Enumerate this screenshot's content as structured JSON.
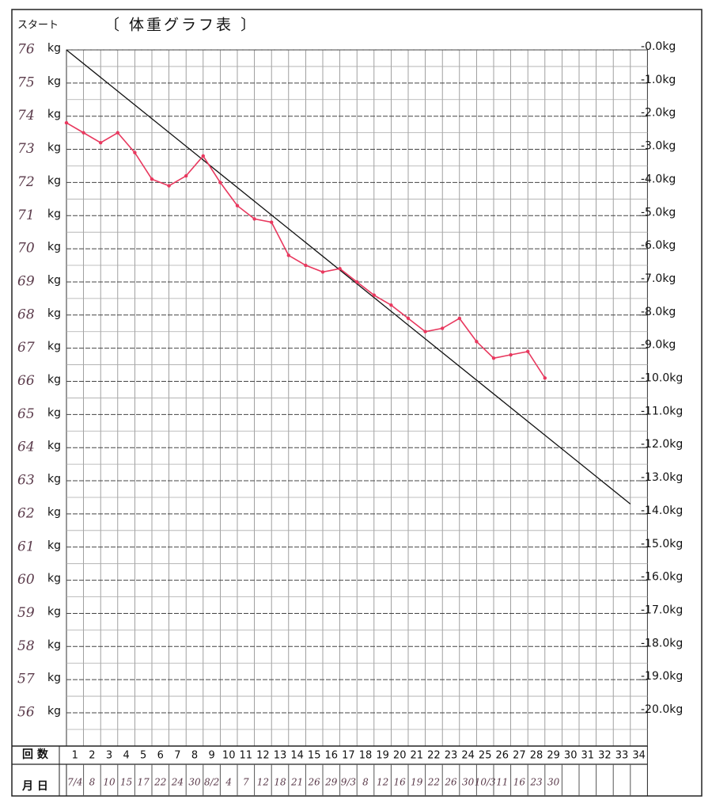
{
  "chart_data": {
    "type": "line",
    "corner_label": "スタート",
    "title": "〔 体重グラフ表 〕",
    "count_row_label": "回 数",
    "date_row_label": "月 日",
    "categories": [
      1,
      2,
      3,
      4,
      5,
      6,
      7,
      8,
      9,
      10,
      11,
      12,
      13,
      14,
      15,
      16,
      17,
      18,
      19,
      20,
      21,
      22,
      23,
      24,
      25,
      26,
      27,
      28,
      29,
      30,
      31,
      32,
      33,
      34
    ],
    "dates": [
      "7/4",
      "8",
      "10",
      "15",
      "17",
      "22",
      "24",
      "30",
      "8/2",
      "4",
      "7",
      "12",
      "18",
      "21",
      "26",
      "29",
      "9/3",
      "8",
      "12",
      "16",
      "19",
      "22",
      "26",
      "30",
      "10/3",
      "11",
      "16",
      "23",
      "30",
      null,
      null,
      null,
      null,
      null
    ],
    "series": [
      {
        "color": "#e8385e",
        "values": [
          73.8,
          73.5,
          73.2,
          73.5,
          72.9,
          72.1,
          71.9,
          72.2,
          72.8,
          72.0,
          71.3,
          70.9,
          70.8,
          69.8,
          69.5,
          69.3,
          69.4,
          69.0,
          68.6,
          68.3,
          67.9,
          67.5,
          67.6,
          67.9,
          67.2,
          66.7,
          66.8,
          66.9,
          66.1,
          null,
          null,
          null,
          null,
          null
        ]
      }
    ],
    "target_line": {
      "color": "#111111",
      "x": [
        1,
        34
      ],
      "values": [
        76,
        62.3
      ]
    },
    "ylim": [
      76,
      56
    ],
    "yticks": [
      76,
      75,
      74,
      73,
      72,
      71,
      70,
      69,
      68,
      67,
      66,
      65,
      64,
      63,
      62,
      61,
      60,
      59,
      58,
      57,
      56
    ],
    "y_unit": "kg",
    "y2lim": [
      0,
      -20
    ],
    "y2ticks": [
      {
        "value": 0,
        "label": "-0.0kg"
      },
      {
        "value": -1,
        "label": "-1.0kg"
      },
      {
        "value": -2,
        "label": "-2.0kg"
      },
      {
        "value": -3,
        "label": "-3.0kg"
      },
      {
        "value": -4,
        "label": "-4.0kg"
      },
      {
        "value": -5,
        "label": "-5.0kg"
      },
      {
        "value": -6,
        "label": "-6.0kg"
      },
      {
        "value": -7,
        "label": "-7.0kg"
      },
      {
        "value": -8,
        "label": "-8.0kg"
      },
      {
        "value": -9,
        "label": "-9.0kg"
      },
      {
        "value": -10,
        "label": "-10.0kg"
      },
      {
        "value": -11,
        "label": "-11.0kg"
      },
      {
        "value": -12,
        "label": "-12.0kg"
      },
      {
        "value": -13,
        "label": "-13.0kg"
      },
      {
        "value": -14,
        "label": "-14.0kg"
      },
      {
        "value": -15,
        "label": "-15.0kg"
      },
      {
        "value": -16,
        "label": "-16.0kg"
      },
      {
        "value": -17,
        "label": "-17.0kg"
      },
      {
        "value": -18,
        "label": "-18.0kg"
      },
      {
        "value": -19,
        "label": "-19.0kg"
      },
      {
        "value": -20,
        "label": "-20.0kg"
      }
    ],
    "grid": true
  }
}
